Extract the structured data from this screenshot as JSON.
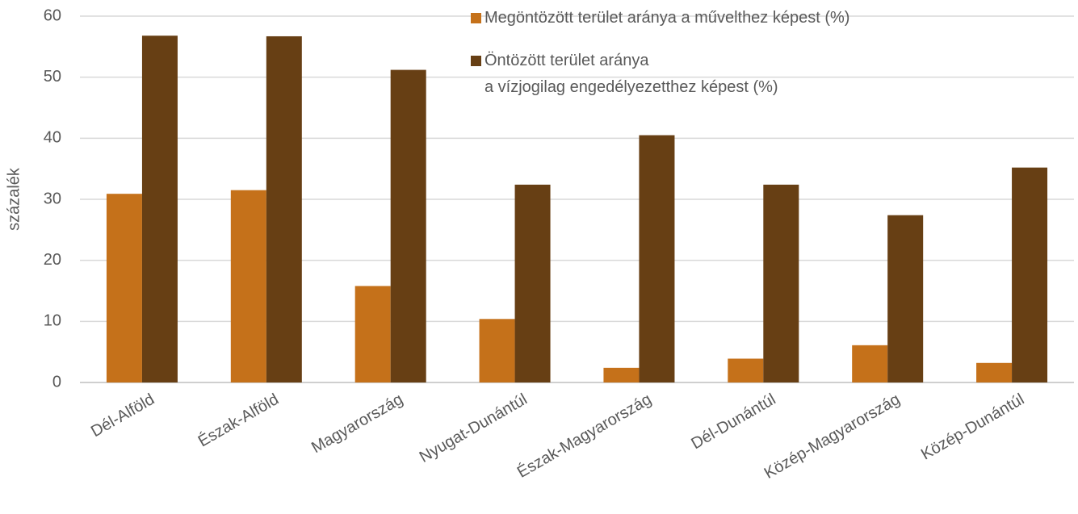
{
  "chart_data": {
    "type": "bar",
    "y_label": "százalék",
    "categories": [
      "Dél-Alföld",
      "Észak-Alföld",
      "Magyarország",
      "Nyugat-Dunántúl",
      "Észak-Magyarország",
      "Dél-Dunántúl",
      "Közép-Magyarország",
      "Közép-Dunántúl"
    ],
    "series": [
      {
        "name": "Megöntözött terület aránya a művelthez képest (%)",
        "color": "#c5711a",
        "values": [
          30.9,
          31.5,
          15.8,
          10.4,
          2.4,
          3.9,
          6.1,
          3.2
        ]
      },
      {
        "name": "Öntözött terület aránya\na vízjogilag engedélyezetthez képest (%)",
        "color": "#673f14",
        "values": [
          56.8,
          56.7,
          51.2,
          32.4,
          40.5,
          32.4,
          27.4,
          35.2
        ]
      }
    ],
    "ylim": [
      0,
      60
    ],
    "yticks": [
      0,
      10,
      20,
      30,
      40,
      50,
      60
    ],
    "grid": true,
    "legend": "top-right"
  }
}
